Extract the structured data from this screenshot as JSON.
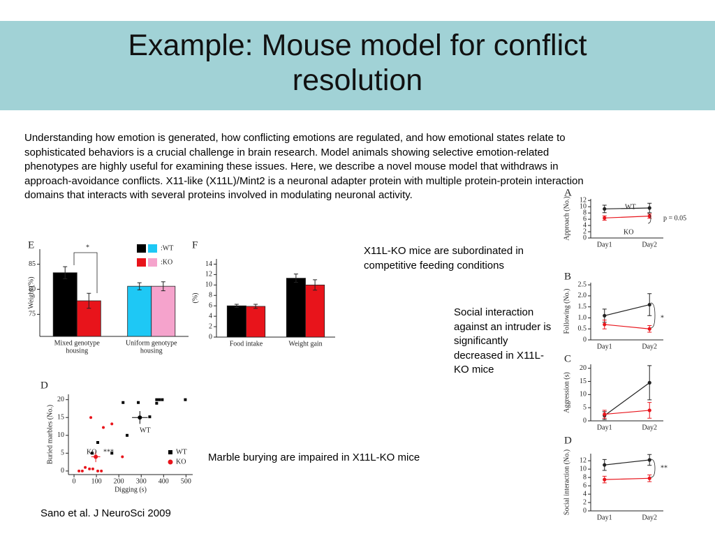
{
  "title": "Example: Mouse model for conflict resolution",
  "paragraph_lines": [
    "Understanding how emotion is generated, how conflicting emotions are regulated, and how emotional states relate to",
    "sophisticated behaviors is a crucial challenge in brain research. Model animals showing selective emotion-related",
    "phenotypes are highly useful for examining these issues. Here, we describe a novel mouse model that withdraws in",
    "approach-avoidance conflicts. X11-like (X11L)/Mint2 is a neuronal adapter protein with multiple protein-protein interaction",
    "domains that interacts with several proteins involved in modulating neuronal activity."
  ],
  "captions": [
    "X11L-KO mice are subordinated in competitive feeding conditions",
    "Social interaction against an intruder is significantly decreased in X11L-KO mice",
    "Marble burying are impaired in X11L-KO mice"
  ],
  "citation": "Sano et al. J NeuroSci 2009",
  "chart_data": [
    {
      "type": "bar",
      "panel_label": "E",
      "ylabel": "Weight (%)",
      "categories": [
        [
          "Mixed genotype",
          "housing"
        ],
        [
          "Uniform genotype",
          "housing"
        ]
      ],
      "series": [
        {
          "name": ":WT",
          "colors": [
            "#000000",
            "#1ec8f5"
          ],
          "values": [
            83.3,
            80.6
          ],
          "errors": [
            1.2,
            0.7
          ]
        },
        {
          "name": ":KO",
          "colors": [
            "#e8141b",
            "#f5a3cc"
          ],
          "values": [
            77.7,
            80.6
          ],
          "errors": [
            1.5,
            0.9
          ]
        }
      ],
      "ylim": [
        70.6,
        88
      ],
      "yticks": [
        75,
        80,
        85
      ],
      "annotations": [
        "*"
      ]
    },
    {
      "type": "bar",
      "panel_label": "F",
      "ylabel": "(%)",
      "categories": [
        [
          "Food intake"
        ],
        [
          "Weight gain"
        ]
      ],
      "series": [
        {
          "colors": [
            "#000000",
            "#000000"
          ],
          "values": [
            6,
            11.3
          ],
          "errors": [
            0.3,
            0.8
          ]
        },
        {
          "colors": [
            "#e8141b",
            "#e8141b"
          ],
          "values": [
            5.9,
            10
          ],
          "errors": [
            0.4,
            1
          ]
        }
      ],
      "ylim": [
        0,
        15
      ],
      "yticks": [
        0,
        2,
        4,
        6,
        8,
        10,
        12,
        14
      ],
      "annotations": []
    },
    {
      "type": "scatter",
      "panel_label": "D",
      "xlabel": "Digging (s)",
      "ylabel": "Buried marbles (No.)",
      "series": [
        {
          "name": "WT",
          "color": "#000000",
          "x": [
            219,
            287,
            369,
            381,
            394,
            497,
            369,
            338,
            237,
            169,
            106,
            81
          ],
          "values": [
            19.2,
            19.2,
            20,
            20,
            20,
            20,
            19,
            15.2,
            10,
            5,
            8,
            5
          ],
          "mean": {
            "x": 294,
            "y": 15,
            "xerr": 35,
            "yerr": 1.8
          }
        },
        {
          "name": "KO",
          "color": "#e8141b",
          "x": [
            75,
            131,
            169,
            216,
            50,
            69,
            84,
            22,
            37,
            106,
            122
          ],
          "values": [
            15,
            12.2,
            13.2,
            4,
            1,
            0.6,
            0.6,
            0,
            0,
            0,
            0
          ],
          "mean": {
            "x": 97,
            "y": 4,
            "xerr": 20,
            "yerr": 1.5
          }
        }
      ],
      "xlim": [
        -25,
        530
      ],
      "xticks": [
        0,
        100,
        200,
        300,
        400,
        500
      ],
      "ylim": [
        -1,
        21.5
      ],
      "yticks": [
        0,
        5,
        10,
        15,
        20
      ],
      "annotations": [
        "WT",
        "KO",
        "***"
      ]
    },
    {
      "type": "line",
      "panel_label": "A",
      "ylabel": "Approach (No.)",
      "categories": [
        "Day1",
        "Day2"
      ],
      "series": [
        {
          "name": "WT",
          "color": "#222222",
          "values": [
            9.3,
            9.6
          ],
          "errors": [
            1.2,
            1.5
          ]
        },
        {
          "name": "KO",
          "color": "#e8141b",
          "values": [
            6.4,
            7
          ],
          "errors": [
            0.7,
            0.7
          ]
        }
      ],
      "ylim": [
        0,
        12.5
      ],
      "yticks": [
        0,
        2,
        4,
        6,
        8,
        10,
        12
      ],
      "annotations": [
        "p = 0.05"
      ]
    },
    {
      "type": "line",
      "panel_label": "B",
      "ylabel": "Following (No.)",
      "categories": [
        "Day1",
        "Day2"
      ],
      "series": [
        {
          "color": "#222222",
          "values": [
            1.1,
            1.6
          ],
          "errors": [
            0.3,
            0.5
          ]
        },
        {
          "color": "#e8141b",
          "values": [
            0.7,
            0.5
          ],
          "errors": [
            0.2,
            0.15
          ]
        }
      ],
      "ylim": [
        0,
        2.6
      ],
      "yticks": [
        0,
        0.5,
        {
          "value": 1,
          "label": "1.0"
        },
        1.5,
        {
          "value": 2,
          "label": "2.0"
        },
        2.5
      ],
      "annotations": [
        "*"
      ]
    },
    {
      "type": "line",
      "panel_label": "C",
      "ylabel": "Aggression (s)",
      "categories": [
        "Day1",
        "Day2"
      ],
      "series": [
        {
          "color": "#222222",
          "values": [
            2,
            14.5
          ],
          "errors": [
            1.5,
            6.5
          ]
        },
        {
          "color": "#e8141b",
          "values": [
            2.5,
            4
          ],
          "errors": [
            1.5,
            3
          ]
        }
      ],
      "ylim": [
        0,
        21.5
      ],
      "yticks": [
        0,
        5,
        10,
        15,
        20
      ],
      "annotations": []
    },
    {
      "type": "line",
      "panel_label": "D",
      "ylabel": "Social interaction (No.)",
      "categories": [
        "Day1",
        "Day2"
      ],
      "series": [
        {
          "color": "#222222",
          "values": [
            11,
            12.2
          ],
          "errors": [
            1.3,
            1.3
          ]
        },
        {
          "color": "#e8141b",
          "values": [
            7.5,
            7.8
          ],
          "errors": [
            0.8,
            0.8
          ]
        }
      ],
      "ylim": [
        0,
        13.7
      ],
      "yticks": [
        0,
        2,
        4,
        6,
        8,
        10,
        12
      ],
      "annotations": [
        "**"
      ]
    }
  ]
}
